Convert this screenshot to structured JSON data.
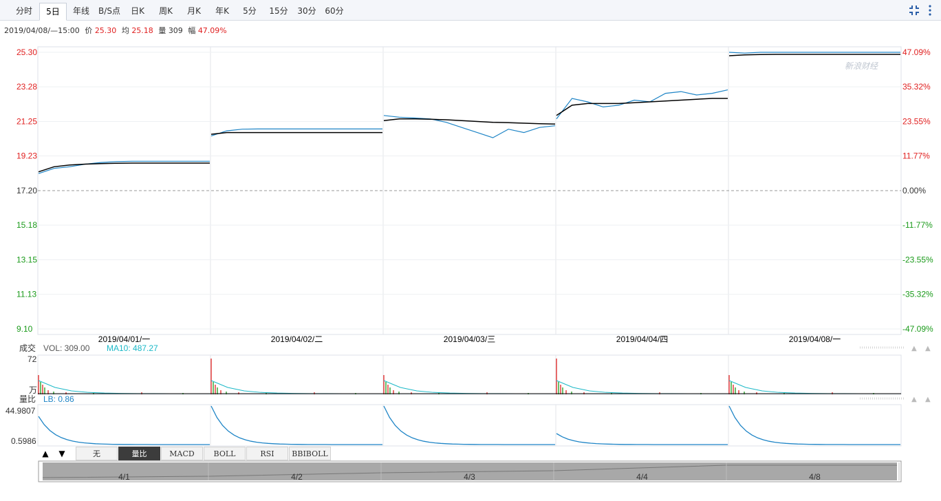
{
  "tabs": [
    {
      "label": "分时"
    },
    {
      "label": "5日",
      "active": true
    },
    {
      "label": "年线"
    },
    {
      "label": "B/S点"
    },
    {
      "label": "日K"
    },
    {
      "label": "周K"
    },
    {
      "label": "月K"
    },
    {
      "label": "年K"
    },
    {
      "label": "5分"
    },
    {
      "label": "15分"
    },
    {
      "label": "30分"
    },
    {
      "label": "60分"
    }
  ],
  "info": {
    "datetime": "2019/04/08/—15:00",
    "price_label": "价",
    "price": "25.30",
    "avg_label": "均",
    "avg": "25.18",
    "vol_label": "量",
    "vol": "309",
    "amp_label": "幅",
    "amp": "47.09%"
  },
  "watermark": "新浪财经",
  "chart_data": {
    "type": "line",
    "price_ticks": [
      "25.30",
      "23.28",
      "21.25",
      "19.23",
      "17.20",
      "15.18",
      "13.15",
      "11.13",
      "9.10"
    ],
    "pct_ticks": [
      "47.09%",
      "35.32%",
      "23.55%",
      "11.77%",
      "0.00%",
      "-11.77%",
      "-23.55%",
      "-35.32%",
      "-47.09%"
    ],
    "ylim": [
      9.1,
      25.3
    ],
    "base_price": 17.2,
    "days": [
      "2019/04/01/一",
      "2019/04/02/二",
      "2019/04/03/三",
      "2019/04/04/四",
      "2019/04/08/一"
    ],
    "series": [
      {
        "name": "price",
        "color": "#1d84c6",
        "days": [
          [
            18.2,
            18.5,
            18.6,
            18.75,
            18.85,
            18.9,
            18.92,
            18.92,
            18.92,
            18.92,
            18.92,
            18.92
          ],
          [
            20.4,
            20.7,
            20.8,
            20.81,
            20.81,
            20.81,
            20.81,
            20.81,
            20.81,
            20.81,
            20.81,
            20.81
          ],
          [
            21.6,
            21.5,
            21.45,
            21.4,
            21.2,
            20.9,
            20.6,
            20.3,
            20.8,
            20.6,
            20.9,
            21.0
          ],
          [
            21.4,
            22.6,
            22.4,
            22.1,
            22.2,
            22.5,
            22.4,
            22.9,
            23.0,
            22.8,
            22.9,
            23.1
          ],
          [
            25.3,
            25.25,
            25.3,
            25.3,
            25.3,
            25.3,
            25.3,
            25.3,
            25.3,
            25.3,
            25.3,
            25.3
          ]
        ]
      },
      {
        "name": "average",
        "color": "#000000",
        "days": [
          [
            18.3,
            18.6,
            18.7,
            18.75,
            18.78,
            18.8,
            18.81,
            18.81,
            18.81,
            18.81,
            18.81,
            18.81
          ],
          [
            20.5,
            20.6,
            20.6,
            20.6,
            20.6,
            20.6,
            20.6,
            20.6,
            20.6,
            20.6,
            20.6,
            20.6
          ],
          [
            21.3,
            21.4,
            21.4,
            21.38,
            21.35,
            21.3,
            21.25,
            21.2,
            21.18,
            21.15,
            21.12,
            21.1
          ],
          [
            21.6,
            22.2,
            22.3,
            22.3,
            22.3,
            22.35,
            22.4,
            22.45,
            22.5,
            22.55,
            22.6,
            22.6
          ],
          [
            25.1,
            25.15,
            25.17,
            25.18,
            25.18,
            25.18,
            25.18,
            25.18,
            25.18,
            25.18,
            25.18,
            25.18
          ]
        ]
      }
    ],
    "volume": {
      "label": "成交",
      "vol_label": "VOL: 309.00",
      "ma_label": "MA10: 487.27",
      "top_tick": "72",
      "unit": "万"
    },
    "ratio": {
      "label": "量比",
      "lb_label": "LB: 0.86",
      "top_tick": "44.9807",
      "bottom_tick": "0.5986"
    },
    "navigator": [
      "4/1",
      "4/2",
      "4/3",
      "4/4",
      "4/8"
    ]
  },
  "bottom_tabs": [
    "无",
    "量比",
    "MACD",
    "BOLL",
    "RSI",
    "BBIBOLL"
  ],
  "colors": {
    "up": "#e02020",
    "down": "#1a9a1a",
    "price": "#1d84c6",
    "avg": "#000000",
    "ma": "#1ab8c7"
  }
}
